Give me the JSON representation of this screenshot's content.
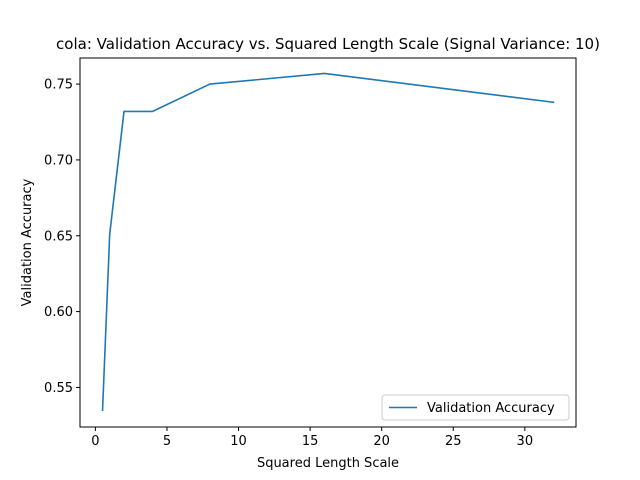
{
  "chart_data": {
    "type": "line",
    "title": "cola: Validation Accuracy vs. Squared Length Scale (Signal Variance: 10)",
    "xlabel": "Squared Length Scale",
    "ylabel": "Validation Accuracy",
    "xlim": [
      -1.075,
      33.575
    ],
    "ylim": [
      0.5239,
      0.7672
    ],
    "x_ticks": [
      0,
      5,
      10,
      15,
      20,
      25,
      30
    ],
    "x_tick_labels": [
      "0",
      "5",
      "10",
      "15",
      "20",
      "25",
      "30"
    ],
    "y_ticks": [
      0.55,
      0.6,
      0.65,
      0.7,
      0.75
    ],
    "y_tick_labels": [
      "0.55",
      "0.60",
      "0.65",
      "0.70",
      "0.75"
    ],
    "grid": false,
    "legend_position": "lower right",
    "series": [
      {
        "name": "Validation Accuracy",
        "color": "#1f77b4",
        "x": [
          0.5,
          1,
          2,
          4,
          8,
          16,
          32
        ],
        "y": [
          0.535,
          0.651,
          0.732,
          0.732,
          0.75,
          0.757,
          0.738
        ]
      }
    ]
  }
}
